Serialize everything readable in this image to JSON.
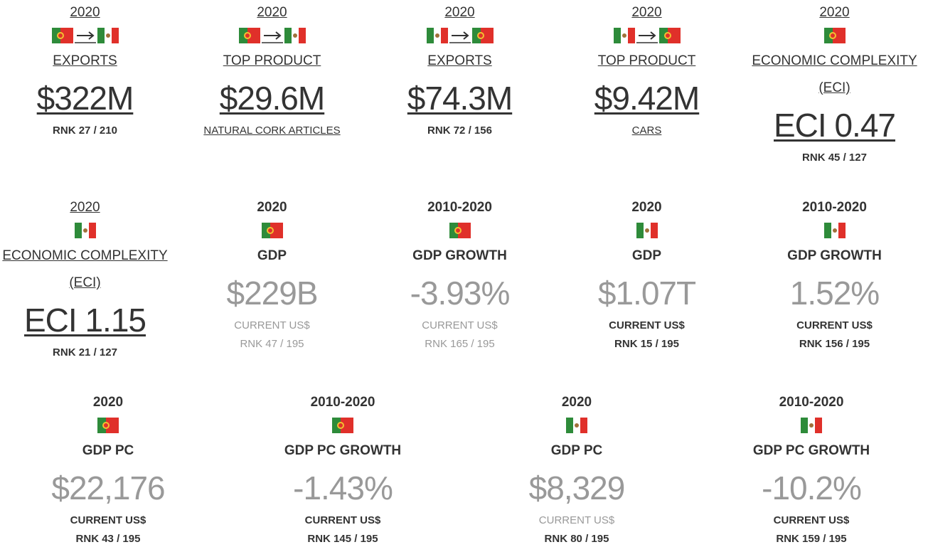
{
  "cards": [
    {
      "year": "2020",
      "title": "EXPORTS",
      "value": "$322M",
      "rank": "RNK 27 / 210"
    },
    {
      "year": "2020",
      "title": "TOP PRODUCT",
      "value": "$29.6M",
      "subtitle": "NATURAL CORK ARTICLES"
    },
    {
      "year": "2020",
      "title": "EXPORTS",
      "value": "$74.3M",
      "rank": "RNK 72 / 156"
    },
    {
      "year": "2020",
      "title": "TOP PRODUCT",
      "value": "$9.42M",
      "subtitle": "CARS"
    },
    {
      "year": "2020",
      "title": "ECONOMIC COMPLEXITY (ECI)",
      "value": "ECI 0.47",
      "rank": "RNK 45 / 127"
    },
    {
      "year": "2020",
      "title": "ECONOMIC COMPLEXITY (ECI)",
      "value": "ECI 1.15",
      "rank": "RNK 21 / 127"
    },
    {
      "year": "2020",
      "title": "GDP",
      "value": "$229B",
      "subtitle": "CURRENT US$",
      "rank": "RNK 47 / 195"
    },
    {
      "year": "2010-2020",
      "title": "GDP GROWTH",
      "value": "-3.93%",
      "subtitle": "CURRENT US$",
      "rank": "RNK 165 / 195"
    },
    {
      "year": "2020",
      "title": "GDP",
      "value": "$1.07T",
      "subtitle": "CURRENT US$",
      "rank": "RNK 15 / 195"
    },
    {
      "year": "2010-2020",
      "title": "GDP GROWTH",
      "value": "1.52%",
      "subtitle": "CURRENT US$",
      "rank": "RNK 156 / 195"
    },
    {
      "year": "2020",
      "title": "GDP PC",
      "value": "$22,176",
      "subtitle": "CURRENT US$",
      "rank": "RNK 43 / 195"
    },
    {
      "year": "2010-2020",
      "title": "GDP PC GROWTH",
      "value": "-1.43%",
      "subtitle": "CURRENT US$",
      "rank": "RNK 145 / 195"
    },
    {
      "year": "2020",
      "title": "GDP PC",
      "value": "$8,329",
      "subtitle": "CURRENT US$",
      "rank": "RNK 80 / 195"
    },
    {
      "year": "2010-2020",
      "title": "GDP PC GROWTH",
      "value": "-10.2%",
      "subtitle": "CURRENT US$",
      "rank": "RNK 159 / 195"
    }
  ]
}
